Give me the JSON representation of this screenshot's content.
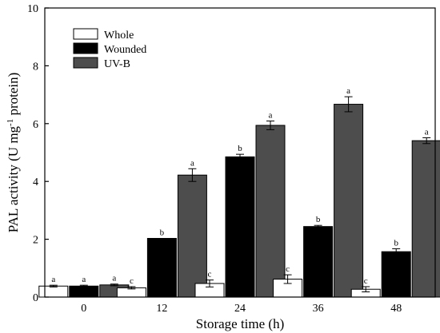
{
  "chart_data": {
    "type": "bar",
    "xlabel": "Storage time (h)",
    "ylabel_main": "PAL activity (U mg",
    "ylabel_sup": "-1",
    "ylabel_end": " protein)",
    "categories": [
      "0",
      "12",
      "24",
      "36",
      "48"
    ],
    "ylim": [
      0,
      10
    ],
    "yticks": [
      "0",
      "2",
      "4",
      "6",
      "8",
      "10"
    ],
    "legend_position": "top-left",
    "series": [
      {
        "name": "Whole",
        "color": "#ffffff",
        "values": [
          0.38,
          0.32,
          0.47,
          0.62,
          0.27
        ],
        "errors": [
          0.03,
          0.04,
          0.12,
          0.15,
          0.09
        ],
        "labels": [
          "a",
          "c",
          "c",
          "c",
          "c"
        ]
      },
      {
        "name": "Wounded",
        "color": "#000000",
        "values": [
          0.38,
          2.03,
          4.85,
          2.44,
          1.57
        ],
        "errors": [
          0.03,
          0.0,
          0.09,
          0.04,
          0.1
        ],
        "labels": [
          "a",
          "b",
          "b",
          "b",
          "b"
        ]
      },
      {
        "name": "UV-B",
        "color": "#4d4d4d",
        "values": [
          0.42,
          4.22,
          5.94,
          6.67,
          5.41
        ],
        "errors": [
          0.03,
          0.22,
          0.15,
          0.26,
          0.1
        ],
        "labels": [
          "a",
          "a",
          "a",
          "a",
          "a"
        ]
      }
    ]
  }
}
